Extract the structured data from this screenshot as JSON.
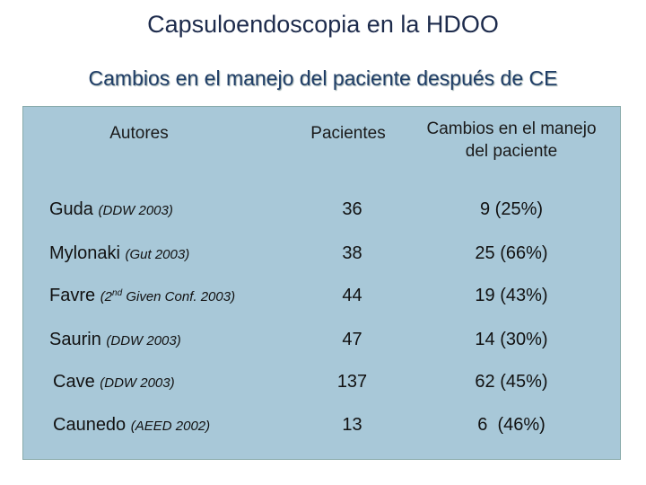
{
  "header": {
    "title": "Capsuloendoscopia en la HDOO",
    "subtitle": "Cambios en el manejo del paciente después de CE"
  },
  "table": {
    "columns": [
      "Autores",
      "Pacientes",
      "Cambios en el manejo del paciente"
    ],
    "rows": [
      {
        "author": "Guda",
        "ref": "(DDW 2003)",
        "patients": 36,
        "change": "9 (25%)"
      },
      {
        "author": "Mylonaki",
        "ref": "(Gut 2003)",
        "patients": 38,
        "change": "25 (66%)"
      },
      {
        "author": "Favre",
        "ref": "(2",
        "ref_sup": "nd",
        "ref_after": " Given Conf. 2003)",
        "patients": 44,
        "change": "19 (43%)"
      },
      {
        "author": "Saurin",
        "ref": "(DDW 2003)",
        "patients": 47,
        "change": "14 (30%)"
      },
      {
        "author": "Cave",
        "ref": "(DDW 2003)",
        "patients": 137,
        "change": "62 (45%)"
      },
      {
        "author": "Caunedo",
        "ref": "(AEED 2002)",
        "patients": 13,
        "change": "6  (46%)"
      }
    ]
  }
}
